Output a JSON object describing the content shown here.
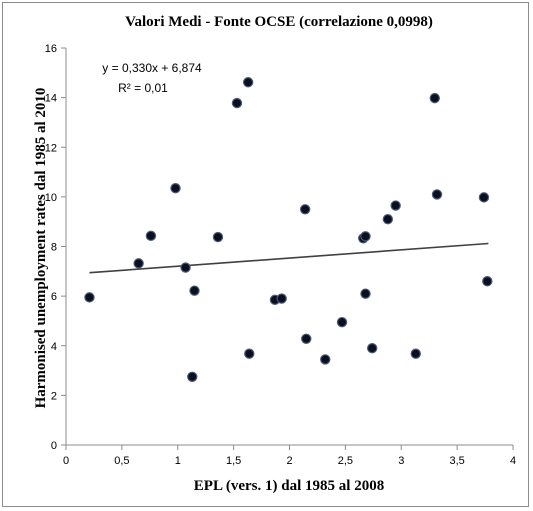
{
  "chart_data": {
    "type": "scatter",
    "title": "Valori Medi - Fonte OCSE  (correlazione 0,0998)",
    "xlabel": "EPL (vers. 1) dal 1985 al 2008",
    "ylabel": "Harmonised unemployment rates dal 1985 al 2010",
    "xlim": [
      0,
      4
    ],
    "ylim": [
      0,
      16
    ],
    "x_ticks": [
      "0",
      "0,5",
      "1",
      "1,5",
      "2",
      "2,5",
      "3",
      "3,5",
      "4"
    ],
    "y_ticks": [
      "0",
      "2",
      "4",
      "6",
      "8",
      "10",
      "12",
      "14",
      "16"
    ],
    "grid": false,
    "legend": "none",
    "marker_color": "#0b1020",
    "marker_edge_color": "#4a5a78",
    "trendline": {
      "slope": 0.33,
      "intercept": 6.874,
      "x_range": [
        0.21,
        3.78
      ],
      "color": "#404040",
      "equation_text": "y = 0,330x + 6,874",
      "r2_text": "R² = 0,01"
    },
    "points": [
      {
        "x": 0.21,
        "y": 5.95
      },
      {
        "x": 0.65,
        "y": 7.32
      },
      {
        "x": 0.76,
        "y": 8.43
      },
      {
        "x": 0.98,
        "y": 10.35
      },
      {
        "x": 1.07,
        "y": 7.15
      },
      {
        "x": 1.13,
        "y": 2.75
      },
      {
        "x": 1.15,
        "y": 6.22
      },
      {
        "x": 1.36,
        "y": 8.38
      },
      {
        "x": 1.53,
        "y": 13.78
      },
      {
        "x": 1.63,
        "y": 14.62
      },
      {
        "x": 1.64,
        "y": 3.68
      },
      {
        "x": 1.87,
        "y": 5.85
      },
      {
        "x": 1.93,
        "y": 5.9
      },
      {
        "x": 2.14,
        "y": 9.5
      },
      {
        "x": 2.15,
        "y": 4.28
      },
      {
        "x": 2.32,
        "y": 3.45
      },
      {
        "x": 2.47,
        "y": 4.95
      },
      {
        "x": 2.66,
        "y": 8.33
      },
      {
        "x": 2.68,
        "y": 8.41
      },
      {
        "x": 2.68,
        "y": 6.1
      },
      {
        "x": 2.74,
        "y": 3.9
      },
      {
        "x": 2.88,
        "y": 9.1
      },
      {
        "x": 2.95,
        "y": 9.65
      },
      {
        "x": 3.13,
        "y": 3.68
      },
      {
        "x": 3.3,
        "y": 13.98
      },
      {
        "x": 3.32,
        "y": 10.1
      },
      {
        "x": 3.74,
        "y": 9.98
      },
      {
        "x": 3.77,
        "y": 6.6
      }
    ]
  }
}
